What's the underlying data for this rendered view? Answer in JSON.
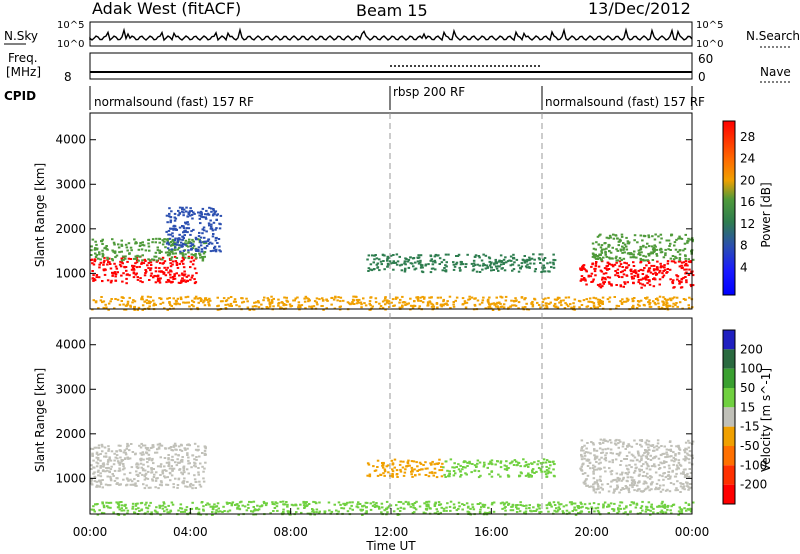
{
  "header": {
    "station": "Adak West (fitACF)",
    "beam": "Beam 15",
    "date": "13/Dec/2012"
  },
  "noise_panel": {
    "left_label": "N.Sky",
    "right_label": "N.Search",
    "left_ticks": [
      "10^5",
      "10^0"
    ],
    "right_ticks": [
      "10^5",
      "10^0"
    ]
  },
  "freq_panel": {
    "left_label_1": "Freq.",
    "left_label_2": "[MHz]",
    "left_tick": "8",
    "right_label": "Nave",
    "right_ticks": [
      "60",
      "0"
    ]
  },
  "cpid": {
    "label": "CPID",
    "segments": [
      {
        "name": "normalsound (fast) 157 RF",
        "start": 0,
        "end": 12
      },
      {
        "name": "rbsp 200 RF",
        "start": 12,
        "end": 18
      },
      {
        "name": "normalsound (fast) 157 RF",
        "start": 18,
        "end": 24
      }
    ]
  },
  "chart_data": [
    {
      "type": "heatmap",
      "title": "",
      "xlabel": "",
      "ylabel": "Slant Range [km]",
      "xlim": [
        0,
        24
      ],
      "ylim": [
        200,
        4600
      ],
      "yticks": [
        1000,
        2000,
        3000,
        4000
      ],
      "ytick_labels": [
        "1000",
        "2000",
        "3000",
        "4000"
      ],
      "colorbar": {
        "label": "Power [dB]",
        "ticks": [
          "4",
          "8",
          "12",
          "16",
          "20",
          "24",
          "28"
        ],
        "colors": [
          "#1a1aff",
          "#2b4fb0",
          "#2e7d4f",
          "#4f9a3a",
          "#f0a000",
          "#ff6a00",
          "#ff3000",
          "#ff0000"
        ]
      },
      "echo_regions": [
        {
          "t0": 0.0,
          "t1": 4.2,
          "r0": 800,
          "r1": 1400,
          "value": 28
        },
        {
          "t0": 0.0,
          "t1": 4.6,
          "r0": 1300,
          "r1": 1800,
          "value": 18
        },
        {
          "t0": 3.0,
          "t1": 5.2,
          "r0": 1500,
          "r1": 2500,
          "value": 8
        },
        {
          "t0": 11.0,
          "t1": 18.5,
          "r0": 1050,
          "r1": 1450,
          "value": 12
        },
        {
          "t0": 19.5,
          "t1": 24.0,
          "r0": 700,
          "r1": 1300,
          "value": 28
        },
        {
          "t0": 20.0,
          "t1": 24.0,
          "r0": 1300,
          "r1": 1900,
          "value": 18
        },
        {
          "t0": 0.0,
          "t1": 24.0,
          "r0": 200,
          "r1": 500,
          "value": 22
        }
      ]
    },
    {
      "type": "heatmap",
      "title": "",
      "xlabel": "Time UT",
      "ylabel": "Slant Range [km]",
      "xlim": [
        0,
        24
      ],
      "ylim": [
        200,
        4600
      ],
      "xticks": [
        0,
        4,
        8,
        12,
        16,
        20,
        24
      ],
      "xtick_labels": [
        "00:00",
        "04:00",
        "08:00",
        "12:00",
        "16:00",
        "20:00",
        "00:00"
      ],
      "yticks": [
        1000,
        2000,
        3000,
        4000
      ],
      "ytick_labels": [
        "1000",
        "2000",
        "3000",
        "4000"
      ],
      "colorbar": {
        "label": "Velocity [m s^-1]",
        "ticks": [
          "200",
          "100",
          "50",
          "15",
          "-15",
          "-50",
          "-100",
          "-200"
        ],
        "colors": [
          "#2020c0",
          "#2a6a40",
          "#3aa030",
          "#70d040",
          "#c0c0b8",
          "#f0a000",
          "#ff7000",
          "#ff3000",
          "#ff0000"
        ]
      },
      "echo_regions": [
        {
          "t0": 0.0,
          "t1": 4.6,
          "r0": 800,
          "r1": 1800,
          "value": 0
        },
        {
          "t0": 11.0,
          "t1": 14.0,
          "r0": 1050,
          "r1": 1450,
          "value": -50
        },
        {
          "t0": 14.0,
          "t1": 18.5,
          "r0": 1050,
          "r1": 1450,
          "value": 20
        },
        {
          "t0": 19.5,
          "t1": 24.0,
          "r0": 700,
          "r1": 1900,
          "value": 0
        },
        {
          "t0": 0.0,
          "t1": 24.0,
          "r0": 200,
          "r1": 500,
          "value": 30
        }
      ]
    }
  ]
}
